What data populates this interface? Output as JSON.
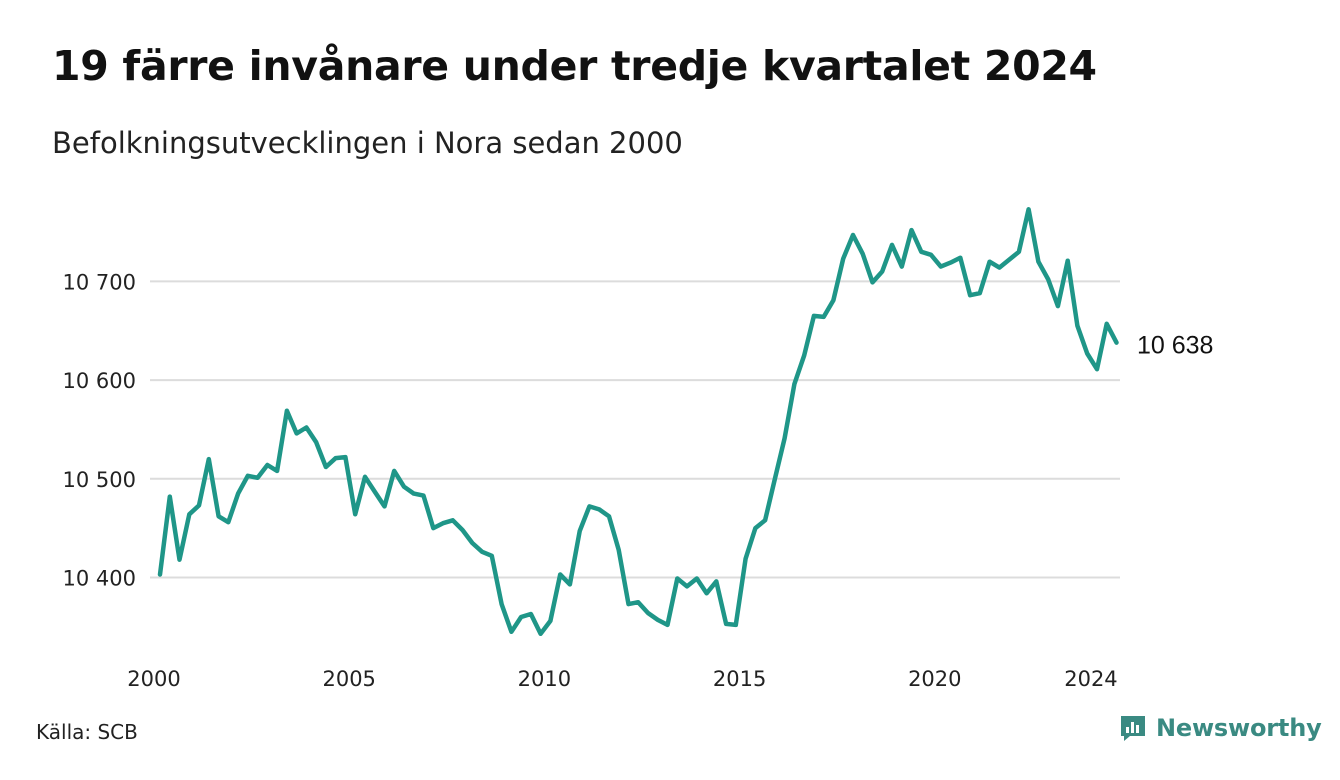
{
  "title": "19 färre invånare under tredje kvartalet 2024",
  "subtitle": "Befolkningsutvecklingen i Nora sedan 2000",
  "source": "Källa: SCB",
  "brand": {
    "name": "Newsworthy",
    "icon": "newsworthy-logo-icon",
    "color": "#3a8a82"
  },
  "chart_data": {
    "type": "line",
    "line_color": "#1f9688",
    "grid": true,
    "ylim": [
      10330,
      10785
    ],
    "xlim": [
      2000,
      2025
    ],
    "y_ticks": [
      {
        "value": 10400,
        "label": "10 400"
      },
      {
        "value": 10500,
        "label": "10 500"
      },
      {
        "value": 10600,
        "label": "10 600"
      },
      {
        "value": 10700,
        "label": "10 700"
      }
    ],
    "x_ticks": [
      {
        "value": 2000,
        "label": "2000"
      },
      {
        "value": 2005,
        "label": "2005"
      },
      {
        "value": 2010,
        "label": "2010"
      },
      {
        "value": 2015,
        "label": "2015"
      },
      {
        "value": 2020,
        "label": "2020"
      },
      {
        "value": 2024,
        "label": "2024"
      }
    ],
    "end_label": "10 638",
    "series": [
      {
        "values": [
          [
            2000.0,
            10403
          ],
          [
            2000.25,
            10482
          ],
          [
            2000.5,
            10418
          ],
          [
            2000.75,
            10464
          ],
          [
            2001.0,
            10473
          ],
          [
            2001.25,
            10520
          ],
          [
            2001.5,
            10462
          ],
          [
            2001.75,
            10456
          ],
          [
            2002.0,
            10485
          ],
          [
            2002.25,
            10503
          ],
          [
            2002.5,
            10501
          ],
          [
            2002.75,
            10514
          ],
          [
            2003.0,
            10508
          ],
          [
            2003.25,
            10569
          ],
          [
            2003.5,
            10546
          ],
          [
            2003.75,
            10552
          ],
          [
            2004.0,
            10537
          ],
          [
            2004.25,
            10512
          ],
          [
            2004.5,
            10521
          ],
          [
            2004.75,
            10522
          ],
          [
            2005.0,
            10464
          ],
          [
            2005.25,
            10502
          ],
          [
            2005.5,
            10487
          ],
          [
            2005.75,
            10472
          ],
          [
            2006.0,
            10508
          ],
          [
            2006.25,
            10492
          ],
          [
            2006.5,
            10485
          ],
          [
            2006.75,
            10483
          ],
          [
            2007.0,
            10450
          ],
          [
            2007.25,
            10455
          ],
          [
            2007.5,
            10458
          ],
          [
            2007.75,
            10448
          ],
          [
            2008.0,
            10435
          ],
          [
            2008.25,
            10426
          ],
          [
            2008.5,
            10422
          ],
          [
            2008.75,
            10373
          ],
          [
            2009.0,
            10345
          ],
          [
            2009.25,
            10360
          ],
          [
            2009.5,
            10363
          ],
          [
            2009.75,
            10343
          ],
          [
            2010.0,
            10356
          ],
          [
            2010.25,
            10403
          ],
          [
            2010.5,
            10393
          ],
          [
            2010.75,
            10447
          ],
          [
            2011.0,
            10472
          ],
          [
            2011.25,
            10469
          ],
          [
            2011.5,
            10462
          ],
          [
            2011.75,
            10428
          ],
          [
            2012.0,
            10373
          ],
          [
            2012.25,
            10375
          ],
          [
            2012.5,
            10364
          ],
          [
            2012.75,
            10357
          ],
          [
            2013.0,
            10352
          ],
          [
            2013.25,
            10399
          ],
          [
            2013.5,
            10391
          ],
          [
            2013.75,
            10399
          ],
          [
            2014.0,
            10384
          ],
          [
            2014.25,
            10396
          ],
          [
            2014.5,
            10353
          ],
          [
            2014.75,
            10352
          ],
          [
            2015.0,
            10419
          ],
          [
            2015.25,
            10450
          ],
          [
            2015.5,
            10458
          ],
          [
            2015.75,
            10500
          ],
          [
            2016.0,
            10541
          ],
          [
            2016.25,
            10596
          ],
          [
            2016.5,
            10625
          ],
          [
            2016.75,
            10665
          ],
          [
            2017.0,
            10664
          ],
          [
            2017.25,
            10681
          ],
          [
            2017.5,
            10723
          ],
          [
            2017.75,
            10747
          ],
          [
            2018.0,
            10728
          ],
          [
            2018.25,
            10699
          ],
          [
            2018.5,
            10710
          ],
          [
            2018.75,
            10737
          ],
          [
            2019.0,
            10715
          ],
          [
            2019.25,
            10752
          ],
          [
            2019.5,
            10730
          ],
          [
            2019.75,
            10727
          ],
          [
            2020.0,
            10715
          ],
          [
            2020.25,
            10719
          ],
          [
            2020.5,
            10724
          ],
          [
            2020.75,
            10686
          ],
          [
            2021.0,
            10688
          ],
          [
            2021.25,
            10720
          ],
          [
            2021.5,
            10714
          ],
          [
            2021.75,
            10722
          ],
          [
            2022.0,
            10730
          ],
          [
            2022.25,
            10773
          ],
          [
            2022.5,
            10720
          ],
          [
            2022.75,
            10702
          ],
          [
            2023.0,
            10675
          ],
          [
            2023.25,
            10721
          ],
          [
            2023.5,
            10655
          ],
          [
            2023.75,
            10627
          ],
          [
            2024.0,
            10611
          ],
          [
            2024.25,
            10657
          ],
          [
            2024.5,
            10638
          ]
        ]
      }
    ]
  }
}
